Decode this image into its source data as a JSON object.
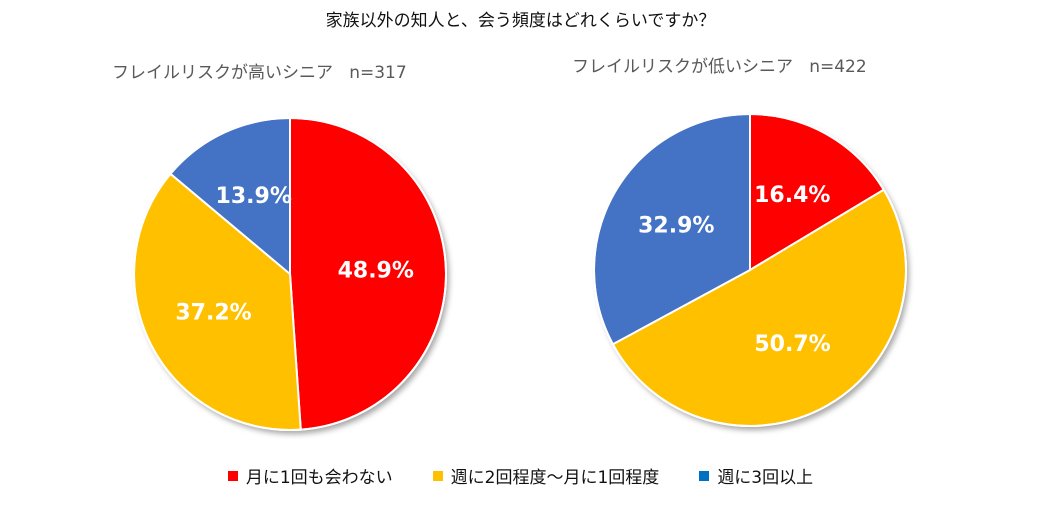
{
  "chart_data": [
    {
      "type": "pie",
      "title": "家族以外の知人と、会う頻度はどれくらいですか？",
      "subtitle": "フレイルリスクが高いシニア",
      "n_label": "n=317",
      "categories": [
        "月に1回も会わない",
        "週に2回程度～月に1回程度",
        "週に3回以上"
      ],
      "values": [
        48.9,
        37.2,
        13.9
      ],
      "value_labels": [
        "48.9%",
        "37.2%",
        "13.9%"
      ],
      "colors": [
        "#FF0000",
        "#FFC000",
        "#4472C4"
      ]
    },
    {
      "type": "pie",
      "title": "家族以外の知人と、会う頻度はどれくらいですか？",
      "subtitle": "フレイルリスクが低いシニア",
      "n_label": "n=422",
      "categories": [
        "月に1回も会わない",
        "週に2回程度～月に1回程度",
        "週に3回以上"
      ],
      "values": [
        16.4,
        50.7,
        32.9
      ],
      "value_labels": [
        "16.4%",
        "50.7%",
        "32.9%"
      ],
      "colors": [
        "#FF0000",
        "#FFC000",
        "#4472C4"
      ]
    }
  ],
  "title": "家族以外の知人と、会う頻度はどれくらいですか？",
  "left": {
    "subtitle": "フレイルリスクが高いシニア",
    "n": "n=317"
  },
  "right": {
    "subtitle": "フレイルリスクが低いシニア",
    "n": "n=422"
  },
  "legend": [
    {
      "label": "月に1回も会わない",
      "color": "#FF0000"
    },
    {
      "label": "週に2回程度～月に1回程度",
      "color": "#FFC000"
    },
    {
      "label": "週に3回以上",
      "color": "#0070C0"
    }
  ]
}
